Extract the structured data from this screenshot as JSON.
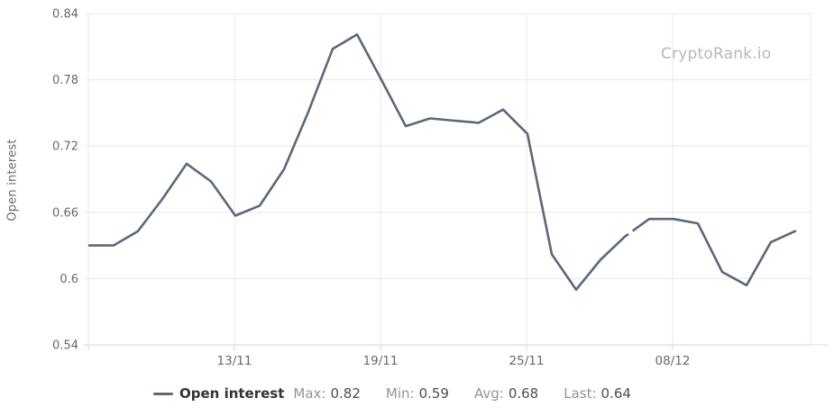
{
  "watermark": "CryptoRank.io",
  "y_axis_title": "Open interest",
  "legend": {
    "series_label": "Open interest",
    "stats": [
      {
        "label": "Max:",
        "value": "0.82"
      },
      {
        "label": "Min:",
        "value": "0.59"
      },
      {
        "label": "Avg:",
        "value": "0.68"
      },
      {
        "label": "Last:",
        "value": "0.64"
      }
    ]
  },
  "colors": {
    "line": "#5c6878",
    "grid": "#e8e8e8",
    "axis": "#ccd6eb",
    "tick_text": "#66696e",
    "watermark": "#b3b8bf",
    "background": "#ffffff"
  },
  "chart_data": {
    "type": "line",
    "title": "",
    "xlabel": "",
    "ylabel": "Open interest",
    "ylim": [
      0.54,
      0.84
    ],
    "grid": true,
    "legend_position": "bottom",
    "y_ticks": [
      {
        "value": 0.84,
        "label": "0.84"
      },
      {
        "value": 0.78,
        "label": "0.78"
      },
      {
        "value": 0.72,
        "label": "0.72"
      },
      {
        "value": 0.66,
        "label": "0.66"
      },
      {
        "value": 0.6,
        "label": "0.6"
      },
      {
        "value": 0.54,
        "label": "0.54"
      }
    ],
    "x_ticks": [
      {
        "index": 0,
        "label": ""
      },
      {
        "index": 6,
        "label": "13/11"
      },
      {
        "index": 12,
        "label": "19/11"
      },
      {
        "index": 18,
        "label": "25/11"
      },
      {
        "index": 24,
        "label": "08/12"
      }
    ],
    "series": [
      {
        "name": "Open interest",
        "values": [
          0.63,
          0.63,
          0.643,
          0.672,
          0.704,
          0.688,
          0.657,
          0.666,
          0.699,
          0.751,
          0.808,
          0.821,
          0.78,
          0.738,
          0.745,
          0.743,
          0.741,
          0.753,
          0.731,
          0.622,
          0.59,
          0.617,
          0.638,
          0.654,
          0.654,
          0.65,
          0.606,
          0.594,
          0.633,
          0.643
        ]
      }
    ],
    "summary": {
      "max": 0.82,
      "min": 0.59,
      "avg": 0.68,
      "last": 0.64
    },
    "line_break": {
      "segment_start_index": 22,
      "t0": 0.15,
      "t1": 0.32
    }
  }
}
